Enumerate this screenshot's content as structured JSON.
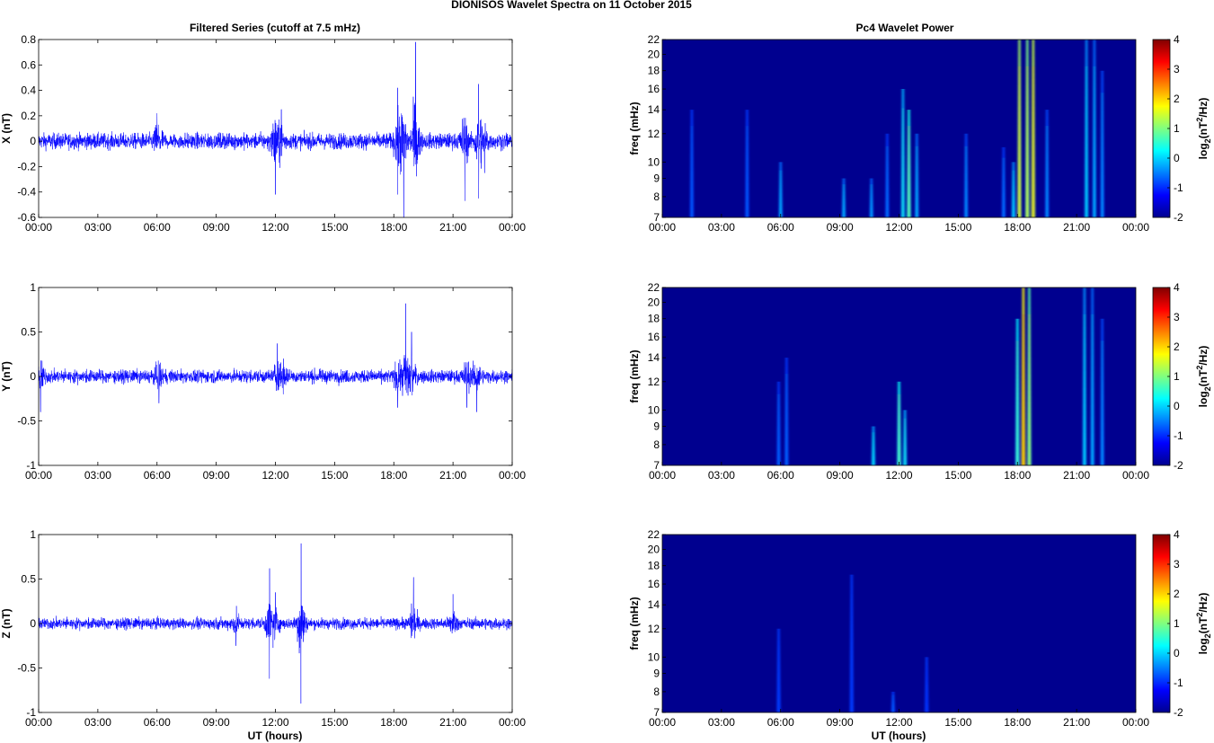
{
  "figure": {
    "suptitle": "DIONISOS Wavelet Spectra on 11 October   2015",
    "left_title": "Filtered Series (cutoff at 7.5 mHz)",
    "right_title": "Pc4 Wavelet Power",
    "xlabel": "UT (hours)"
  },
  "colors": {
    "series": "#0000ff",
    "background": "#00008f"
  },
  "chart_data": [
    {
      "type": "line",
      "panel": "X",
      "ylabel": "X (nT)",
      "x_ticks": [
        "00:00",
        "03:00",
        "06:00",
        "09:00",
        "12:00",
        "15:00",
        "18:00",
        "21:00",
        "00:00"
      ],
      "y_ticks": [
        "0.8",
        "0.6",
        "0.4",
        "0.2",
        "0",
        "-0.2",
        "-0.4",
        "-0.6"
      ],
      "ylim": [
        -0.6,
        0.8
      ],
      "xlim_hours": [
        0,
        24
      ],
      "baseline_amplitude": 0.06,
      "bursts": [
        {
          "t": 6.0,
          "amp": 0.22
        },
        {
          "t": 12.0,
          "amp": 0.42
        },
        {
          "t": 12.3,
          "amp": 0.25
        },
        {
          "t": 18.2,
          "amp": 0.42
        },
        {
          "t": 18.5,
          "amp": 0.62
        },
        {
          "t": 19.1,
          "amp": 0.78
        },
        {
          "t": 21.6,
          "amp": 0.47
        },
        {
          "t": 22.3,
          "amp": 0.45
        },
        {
          "t": 22.6,
          "amp": 0.25
        }
      ]
    },
    {
      "type": "line",
      "panel": "Y",
      "ylabel": "Y (nT)",
      "x_ticks": [
        "00:00",
        "03:00",
        "06:00",
        "09:00",
        "12:00",
        "15:00",
        "18:00",
        "21:00",
        "00:00"
      ],
      "y_ticks": [
        "1",
        "0.5",
        "0",
        "-0.5",
        "-1"
      ],
      "ylim": [
        -1,
        1
      ],
      "xlim_hours": [
        0,
        24
      ],
      "baseline_amplitude": 0.07,
      "bursts": [
        {
          "t": 0.1,
          "amp": 0.4
        },
        {
          "t": 6.1,
          "amp": 0.3
        },
        {
          "t": 12.1,
          "amp": 0.37
        },
        {
          "t": 12.4,
          "amp": 0.2
        },
        {
          "t": 18.2,
          "amp": 0.35
        },
        {
          "t": 18.6,
          "amp": 0.82
        },
        {
          "t": 18.9,
          "amp": 0.5
        },
        {
          "t": 21.7,
          "amp": 0.35
        },
        {
          "t": 22.2,
          "amp": 0.4
        }
      ]
    },
    {
      "type": "line",
      "panel": "Z",
      "ylabel": "Z (nT)",
      "x_ticks": [
        "00:00",
        "03:00",
        "06:00",
        "09:00",
        "12:00",
        "15:00",
        "18:00",
        "21:00",
        "00:00"
      ],
      "y_ticks": [
        "1",
        "0.5",
        "0",
        "-0.5",
        "-1"
      ],
      "ylim": [
        -1,
        1
      ],
      "xlim_hours": [
        0,
        24
      ],
      "baseline_amplitude": 0.06,
      "bursts": [
        {
          "t": 10.0,
          "amp": 0.25
        },
        {
          "t": 11.7,
          "amp": 0.62
        },
        {
          "t": 12.0,
          "amp": 0.35
        },
        {
          "t": 13.3,
          "amp": 0.9
        },
        {
          "t": 19.0,
          "amp": 0.52
        },
        {
          "t": 21.0,
          "amp": 0.33
        }
      ]
    },
    {
      "type": "heatmap",
      "panel": "X-wavelet",
      "ylabel": "freq (mHz)",
      "colorbar_label": "log2(nT^2/Hz)",
      "colorbar_ticks": [
        "4",
        "3",
        "2",
        "1",
        "0",
        "-1",
        "-2"
      ],
      "clim": [
        -2,
        4
      ],
      "x_ticks": [
        "00:00",
        "03:00",
        "06:00",
        "09:00",
        "12:00",
        "15:00",
        "18:00",
        "21:00",
        "00:00"
      ],
      "y_ticks": [
        "22",
        "20",
        "18",
        "16",
        "14",
        "12",
        "10",
        "9",
        "8",
        "7"
      ],
      "ylim_mhz": [
        7,
        22
      ],
      "streaks": [
        {
          "t": 1.5,
          "top": 14,
          "level": -1.2
        },
        {
          "t": 4.3,
          "top": 14,
          "level": -1.2
        },
        {
          "t": 6.0,
          "top": 10,
          "level": -0.6
        },
        {
          "t": 9.2,
          "top": 9,
          "level": -0.6
        },
        {
          "t": 10.6,
          "top": 9,
          "level": -0.7
        },
        {
          "t": 11.4,
          "top": 12,
          "level": -1.0
        },
        {
          "t": 12.2,
          "top": 16,
          "level": -0.2
        },
        {
          "t": 12.5,
          "top": 14,
          "level": 0.4
        },
        {
          "t": 12.9,
          "top": 12,
          "level": -0.6
        },
        {
          "t": 15.4,
          "top": 12,
          "level": -0.8
        },
        {
          "t": 17.3,
          "top": 11,
          "level": -1.0
        },
        {
          "t": 17.8,
          "top": 10,
          "level": -0.4
        },
        {
          "t": 18.1,
          "top": 22,
          "level": 1.2
        },
        {
          "t": 18.5,
          "top": 22,
          "level": 1.0
        },
        {
          "t": 18.8,
          "top": 22,
          "level": 1.4
        },
        {
          "t": 19.5,
          "top": 14,
          "level": -0.8
        },
        {
          "t": 21.5,
          "top": 22,
          "level": -0.4
        },
        {
          "t": 21.9,
          "top": 22,
          "level": -0.6
        },
        {
          "t": 22.3,
          "top": 18,
          "level": -0.8
        }
      ]
    },
    {
      "type": "heatmap",
      "panel": "Y-wavelet",
      "ylabel": "freq (mHz)",
      "colorbar_label": "log2(nT^2/Hz)",
      "colorbar_ticks": [
        "4",
        "3",
        "2",
        "1",
        "0",
        "-1",
        "-2"
      ],
      "clim": [
        -2,
        4
      ],
      "x_ticks": [
        "00:00",
        "03:00",
        "06:00",
        "09:00",
        "12:00",
        "15:00",
        "18:00",
        "21:00",
        "00:00"
      ],
      "y_ticks": [
        "22",
        "20",
        "18",
        "16",
        "14",
        "12",
        "10",
        "9",
        "8",
        "7"
      ],
      "ylim_mhz": [
        7,
        22
      ],
      "streaks": [
        {
          "t": 5.9,
          "top": 12,
          "level": -1.1
        },
        {
          "t": 6.3,
          "top": 14,
          "level": -1.1
        },
        {
          "t": 10.7,
          "top": 9,
          "level": -0.3
        },
        {
          "t": 12.0,
          "top": 12,
          "level": 0.3
        },
        {
          "t": 12.3,
          "top": 10,
          "level": -0.2
        },
        {
          "t": 18.0,
          "top": 18,
          "level": 0.2
        },
        {
          "t": 18.3,
          "top": 22,
          "level": 1.8
        },
        {
          "t": 18.6,
          "top": 22,
          "level": 0.8
        },
        {
          "t": 21.4,
          "top": 22,
          "level": -0.4
        },
        {
          "t": 21.8,
          "top": 22,
          "level": -0.6
        },
        {
          "t": 22.3,
          "top": 18,
          "level": -0.8
        }
      ]
    },
    {
      "type": "heatmap",
      "panel": "Z-wavelet",
      "ylabel": "freq (mHz)",
      "colorbar_label": "log2(nT^2/Hz)",
      "colorbar_ticks": [
        "4",
        "3",
        "2",
        "1",
        "0",
        "-1",
        "-2"
      ],
      "clim": [
        -2,
        4
      ],
      "x_ticks": [
        "00:00",
        "03:00",
        "06:00",
        "09:00",
        "12:00",
        "15:00",
        "18:00",
        "21:00",
        "00:00"
      ],
      "y_ticks": [
        "22",
        "20",
        "18",
        "16",
        "14",
        "12",
        "10",
        "9",
        "8",
        "7"
      ],
      "ylim_mhz": [
        7,
        22
      ],
      "streaks": [
        {
          "t": 5.9,
          "top": 12,
          "level": -1.5
        },
        {
          "t": 9.6,
          "top": 17,
          "level": -1.5
        },
        {
          "t": 11.7,
          "top": 8,
          "level": -1.2
        },
        {
          "t": 13.4,
          "top": 10,
          "level": -1.6
        }
      ]
    }
  ]
}
